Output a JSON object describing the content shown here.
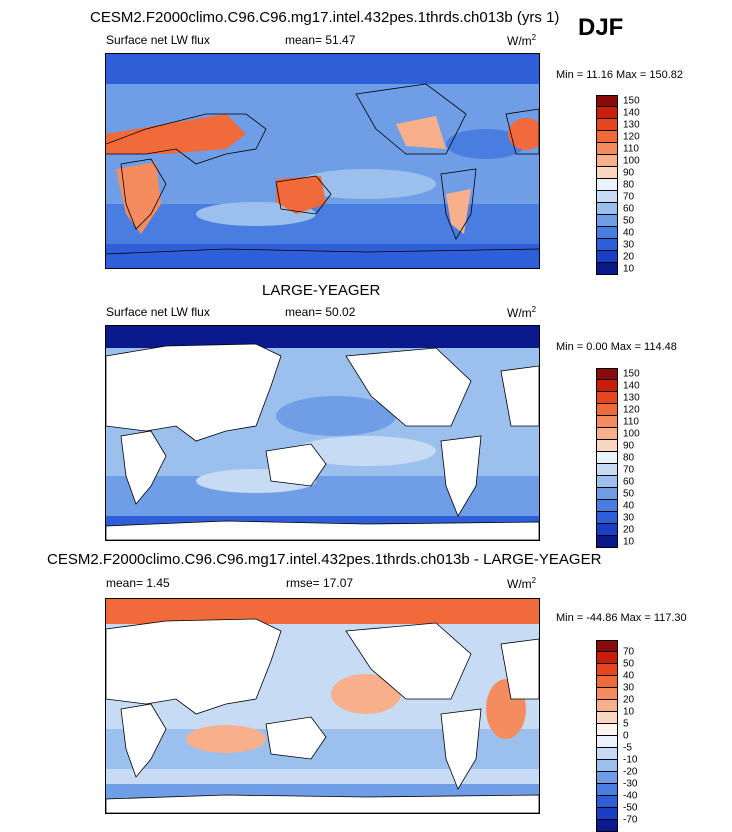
{
  "season": "DJF",
  "panels": [
    {
      "title": "CESM2.F2000climo.C96.C96.mg17.intel.432pes.1thrds.ch013b (yrs 1)",
      "left_label": "Surface net LW flux",
      "mid_label": "mean=  51.47",
      "unit": "W/m",
      "unit_sup": "2",
      "minmax": "Min =  11.16 Max = 150.82",
      "levels": [
        "150",
        "140",
        "130",
        "120",
        "110",
        "100",
        "90",
        "80",
        "70",
        "60",
        "50",
        "40",
        "30",
        "20",
        "10"
      ],
      "colors": [
        "#8b0a0a",
        "#c81e0a",
        "#e5461e",
        "#f06a3c",
        "#f58c5f",
        "#f8b08c",
        "#fbd7c0",
        "#eaf2fb",
        "#c7dcf4",
        "#9cc0ee",
        "#6f9ee6",
        "#4a7de0",
        "#2f5fd8",
        "#1a3fc4",
        "#0a1a8c"
      ]
    },
    {
      "title": "LARGE-YEAGER",
      "left_label": "Surface net LW flux",
      "mid_label": "mean=  50.02",
      "unit": "W/m",
      "unit_sup": "2",
      "minmax": "Min =   0.00 Max = 114.48",
      "levels": [
        "150",
        "140",
        "130",
        "120",
        "110",
        "100",
        "90",
        "80",
        "70",
        "60",
        "50",
        "40",
        "30",
        "20",
        "10"
      ],
      "colors": [
        "#8b0a0a",
        "#c81e0a",
        "#e5461e",
        "#f06a3c",
        "#f58c5f",
        "#f8b08c",
        "#fbd7c0",
        "#eaf2fb",
        "#c7dcf4",
        "#9cc0ee",
        "#6f9ee6",
        "#4a7de0",
        "#2f5fd8",
        "#1a3fc4",
        "#0a1a8c"
      ]
    },
    {
      "title": "CESM2.F2000climo.C96.C96.mg17.intel.432pes.1thrds.ch013b - LARGE-YEAGER",
      "left_label": "mean=   1.45",
      "mid_label": "rmse=  17.07",
      "unit": "W/m",
      "unit_sup": "2",
      "minmax": "Min = -44.86 Max = 117.30",
      "levels": [
        "70",
        "50",
        "40",
        "30",
        "20",
        "10",
        "5",
        "0",
        "-5",
        "-10",
        "-20",
        "-30",
        "-40",
        "-50",
        "-70"
      ],
      "colors": [
        "#8b0a0a",
        "#c81e0a",
        "#e5461e",
        "#f06a3c",
        "#f58c5f",
        "#f8b08c",
        "#fbd7c0",
        "#fff4ee",
        "#eaf2fb",
        "#c7dcf4",
        "#9cc0ee",
        "#6f9ee6",
        "#4a7de0",
        "#2f5fd8",
        "#1a3fc4",
        "#0a1a8c"
      ]
    }
  ]
}
